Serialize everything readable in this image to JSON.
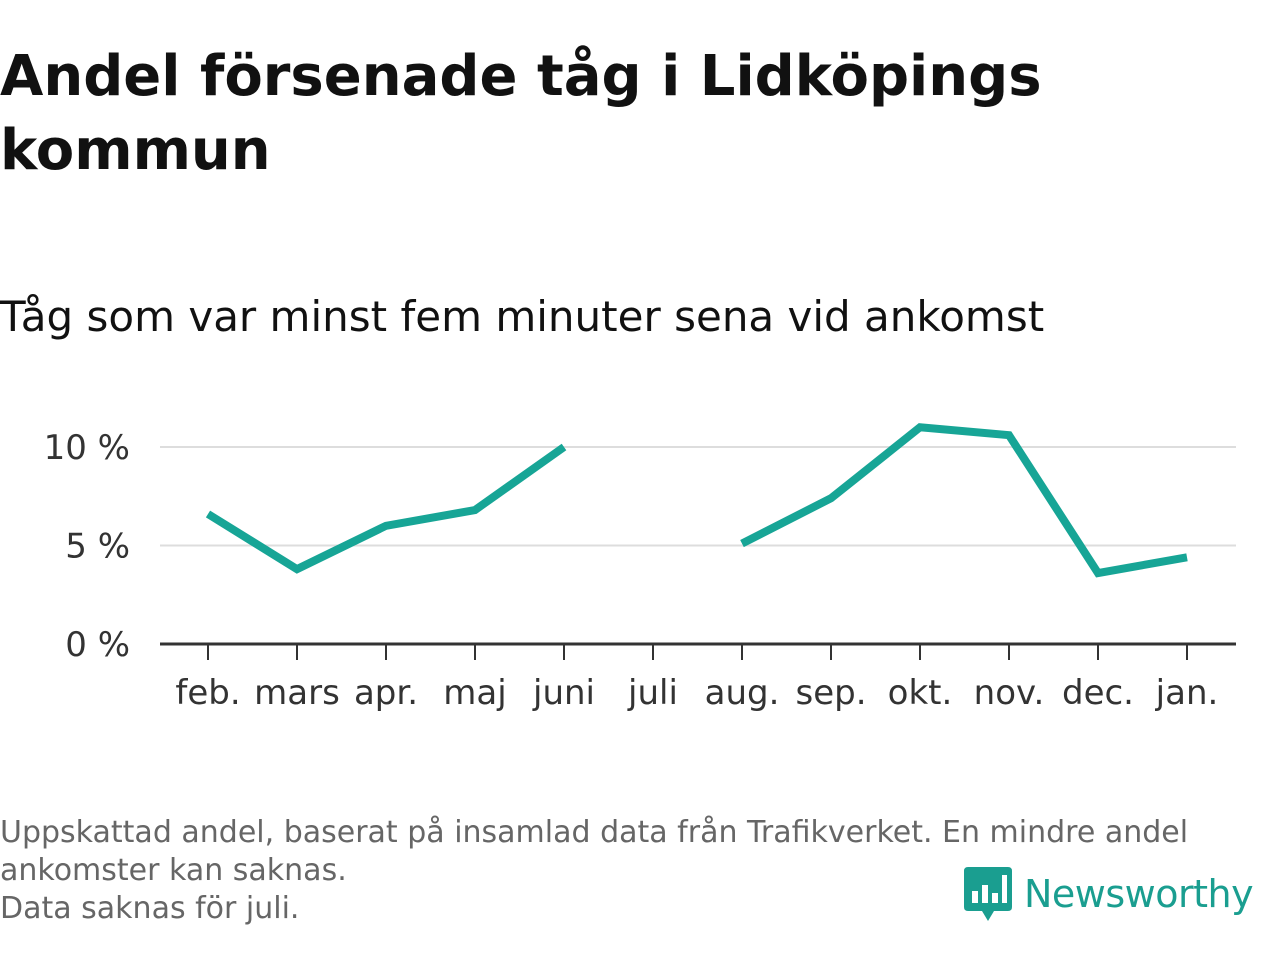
{
  "title": "Andel försenade tåg i Lidköpings kommun",
  "subtitle": "Tåg som var minst fem minuter sena vid ankomst",
  "footer": {
    "line1": "Uppskattad andel, baserat på insamlad data från Trafikverket. En mindre andel",
    "line2": "ankomster kan saknas.",
    "line3": "Data saknas för juli."
  },
  "brand": {
    "name": "Newsworthy",
    "icon": "newsworthy-logo-icon",
    "color": "#1a9e90"
  },
  "colors": {
    "line": "#17a596",
    "grid": "#dddddd",
    "axis": "#333333"
  },
  "chart_data": {
    "type": "line",
    "categories": [
      "feb.",
      "mars",
      "apr.",
      "maj",
      "juni",
      "juli",
      "aug.",
      "sep.",
      "okt.",
      "nov.",
      "dec.",
      "jan."
    ],
    "series": [
      {
        "values": [
          6.6,
          3.8,
          6.0,
          6.8,
          10.0,
          null,
          5.1,
          7.4,
          11.0,
          10.6,
          3.6,
          4.4
        ]
      }
    ],
    "yticks": [
      "0 %",
      "5 %",
      "10 %"
    ],
    "ytick_values": [
      0,
      5,
      10
    ],
    "ylim": [
      0,
      11
    ],
    "grid": true,
    "xlabel": "",
    "ylabel": ""
  }
}
